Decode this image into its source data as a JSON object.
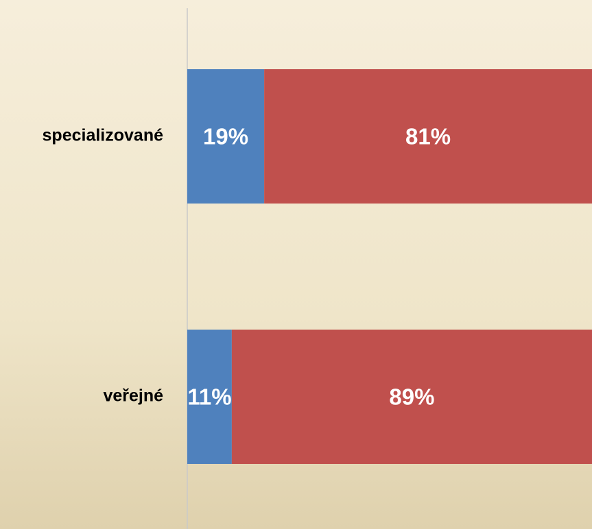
{
  "chart_data": {
    "type": "bar",
    "orientation": "horizontal",
    "stacked": true,
    "categories": [
      "specializované",
      "veřejné"
    ],
    "series": [
      {
        "color": "#4f81bd",
        "values": [
          19,
          11
        ],
        "value_labels": [
          "19%",
          "11%"
        ]
      },
      {
        "color": "#c0504d",
        "values": [
          81,
          89
        ],
        "value_labels": [
          "81%",
          "89%"
        ]
      }
    ],
    "xlim": [
      0,
      100
    ]
  }
}
